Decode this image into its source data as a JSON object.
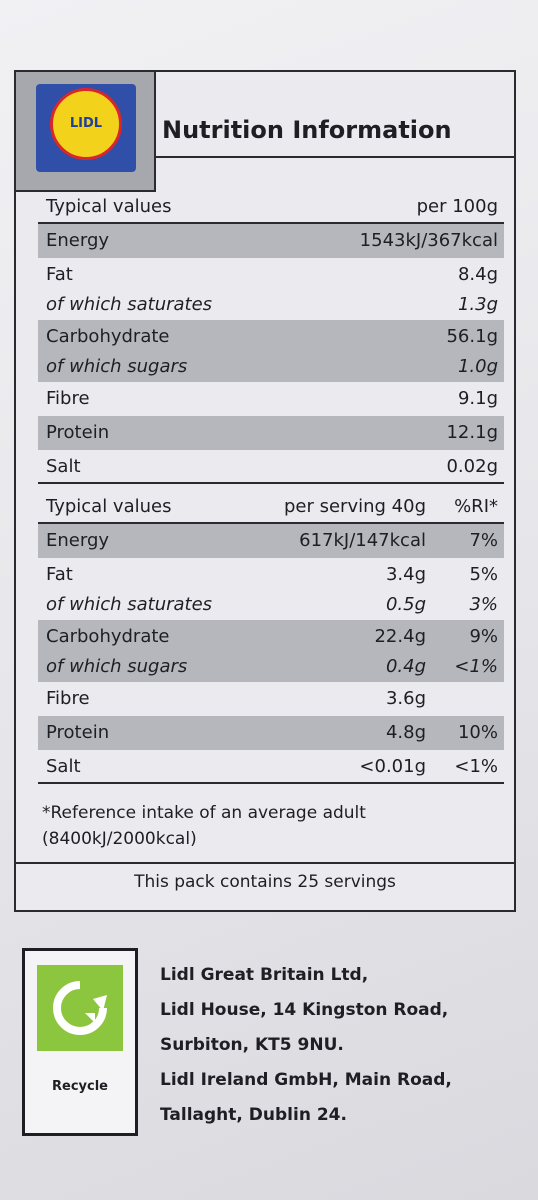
{
  "header": {
    "brand": "LIDL",
    "title": "Nutrition Information"
  },
  "table_per100": {
    "heading_label": "Typical values",
    "heading_value": "per 100g",
    "rows": [
      {
        "label": "Energy",
        "value": "1543kJ/367kcal",
        "italic": false,
        "shaded": true
      },
      {
        "label": "Fat",
        "value": "8.4g",
        "italic": false,
        "shaded": false
      },
      {
        "label": "of which saturates",
        "value": "1.3g",
        "italic": true,
        "shaded": false
      },
      {
        "label": "Carbohydrate",
        "value": "56.1g",
        "italic": false,
        "shaded": true
      },
      {
        "label": "of which sugars",
        "value": "1.0g",
        "italic": true,
        "shaded": true
      },
      {
        "label": "Fibre",
        "value": "9.1g",
        "italic": false,
        "shaded": false
      },
      {
        "label": "Protein",
        "value": "12.1g",
        "italic": false,
        "shaded": true
      },
      {
        "label": "Salt",
        "value": "0.02g",
        "italic": false,
        "shaded": false
      }
    ]
  },
  "table_serving": {
    "heading_label": "Typical values",
    "heading_serving": "per serving 40g",
    "heading_ri": "%RI*",
    "rows": [
      {
        "label": "Energy",
        "serving": "617kJ/147kcal",
        "ri": "7%",
        "italic": false,
        "shaded": true
      },
      {
        "label": "Fat",
        "serving": "3.4g",
        "ri": "5%",
        "italic": false,
        "shaded": false
      },
      {
        "label": "of which saturates",
        "serving": "0.5g",
        "ri": "3%",
        "italic": true,
        "shaded": false
      },
      {
        "label": "Carbohydrate",
        "serving": "22.4g",
        "ri": "9%",
        "italic": false,
        "shaded": true
      },
      {
        "label": "of which sugars",
        "serving": "0.4g",
        "ri": "<1%",
        "italic": true,
        "shaded": true
      },
      {
        "label": "Fibre",
        "serving": "3.6g",
        "ri": "",
        "italic": false,
        "shaded": false
      },
      {
        "label": "Protein",
        "serving": "4.8g",
        "ri": "10%",
        "italic": false,
        "shaded": true
      },
      {
        "label": "Salt",
        "serving": "<0.01g",
        "ri": "<1%",
        "italic": false,
        "shaded": false
      }
    ]
  },
  "footnote": {
    "line1": "*Reference intake of an average adult",
    "line2": "(8400kJ/2000kcal)"
  },
  "pack_note": "This pack contains 25 servings",
  "recycle": {
    "label": "Recycle",
    "icon": "recycle-arrow-icon",
    "color": "#8cc63f"
  },
  "address": [
    "Lidl Great Britain Ltd,",
    "Lidl House, 14 Kingston Road,",
    "Surbiton, KT5 9NU.",
    "Lidl Ireland GmbH, Main Road,",
    "Tallaght, Dublin 24."
  ]
}
